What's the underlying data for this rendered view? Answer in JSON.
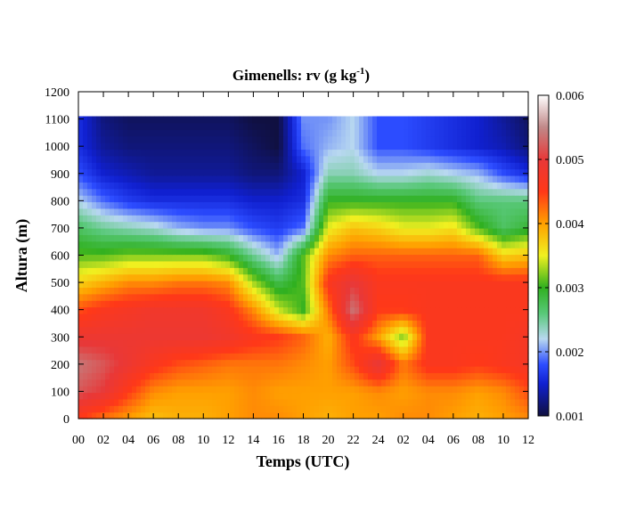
{
  "chart_data": {
    "type": "heatmap",
    "title": "Gimenells: rv (g kg",
    "title_superscript": "-1",
    "title_suffix": ")",
    "xlabel": "Temps (UTC)",
    "ylabel": "Altura (m)",
    "x_ticks": [
      "00",
      "02",
      "04",
      "06",
      "08",
      "10",
      "12",
      "14",
      "16",
      "18",
      "20",
      "22",
      "24",
      "02",
      "04",
      "06",
      "08",
      "10",
      "12"
    ],
    "y_ticks": [
      "0",
      "100",
      "200",
      "300",
      "400",
      "500",
      "600",
      "700",
      "800",
      "900",
      "1000",
      "1100",
      "1200"
    ],
    "ylim": [
      0,
      1200
    ],
    "x_range_hours": [
      0,
      36
    ],
    "data_top_m": 1110,
    "colorbar": {
      "ticks": [
        "0.006",
        "0.005",
        "0.004",
        "0.003",
        "0.002",
        "0.001"
      ],
      "range": [
        0.001,
        0.006
      ],
      "colors": [
        [
          0.001,
          "#101040"
        ],
        [
          0.0015,
          "#1020d0"
        ],
        [
          0.0018,
          "#2c4cff"
        ],
        [
          0.0022,
          "#b8d8f0"
        ],
        [
          0.0026,
          "#58c878"
        ],
        [
          0.003,
          "#30b020"
        ],
        [
          0.0035,
          "#f0f020"
        ],
        [
          0.004,
          "#ffa000"
        ],
        [
          0.0045,
          "#ff3818"
        ],
        [
          0.005,
          "#e83838"
        ],
        [
          0.0055,
          "#c08888"
        ],
        [
          0.006,
          "#ffffff"
        ]
      ]
    },
    "rows": [
      {
        "z": 0,
        "hours": [
          0,
          2,
          4,
          6,
          8,
          10,
          12,
          14,
          16,
          18,
          20,
          22,
          24,
          26,
          28,
          30,
          32,
          34,
          36
        ],
        "values": [
          0.0045,
          0.0042,
          0.004,
          0.0038,
          0.0039,
          0.0039,
          0.004,
          0.0041,
          0.0041,
          0.004,
          0.0039,
          0.004,
          0.004,
          0.0041,
          0.0041,
          0.004,
          0.0039,
          0.004,
          0.0041
        ]
      },
      {
        "z": 100,
        "hours": [
          0,
          2,
          4,
          6,
          8,
          10,
          12,
          14,
          16,
          18,
          20,
          22,
          24,
          26,
          28,
          30,
          32,
          34,
          36
        ],
        "values": [
          0.0052,
          0.005,
          0.0045,
          0.0041,
          0.004,
          0.004,
          0.004,
          0.0041,
          0.004,
          0.004,
          0.004,
          0.004,
          0.0041,
          0.004,
          0.0041,
          0.0041,
          0.004,
          0.0041,
          0.0044
        ]
      },
      {
        "z": 200,
        "hours": [
          0,
          2,
          4,
          6,
          8,
          10,
          12,
          14,
          16,
          18,
          20,
          22,
          24,
          26,
          28,
          30,
          32,
          34,
          36
        ],
        "values": [
          0.0054,
          0.0052,
          0.0049,
          0.0046,
          0.0044,
          0.0043,
          0.0042,
          0.0042,
          0.0042,
          0.0041,
          0.004,
          0.0044,
          0.005,
          0.0042,
          0.0046,
          0.0046,
          0.0045,
          0.0046,
          0.0047
        ]
      },
      {
        "z": 300,
        "hours": [
          0,
          2,
          4,
          6,
          8,
          10,
          12,
          14,
          16,
          18,
          20,
          22,
          24,
          26,
          28,
          30,
          32,
          34,
          36
        ],
        "values": [
          0.0049,
          0.0049,
          0.0049,
          0.0049,
          0.0049,
          0.0049,
          0.0048,
          0.0046,
          0.0045,
          0.0043,
          0.0039,
          0.0046,
          0.004,
          0.0032,
          0.0046,
          0.0046,
          0.0046,
          0.0046,
          0.0047
        ]
      },
      {
        "z": 400,
        "hours": [
          0,
          2,
          4,
          6,
          8,
          10,
          12,
          14,
          16,
          18,
          20,
          22,
          24,
          26,
          28,
          30,
          32,
          34,
          36
        ],
        "values": [
          0.0044,
          0.0046,
          0.0047,
          0.0048,
          0.0048,
          0.0048,
          0.0046,
          0.0041,
          0.0034,
          0.003,
          0.0042,
          0.0054,
          0.0045,
          0.0045,
          0.0046,
          0.0046,
          0.0046,
          0.0046,
          0.0046
        ]
      },
      {
        "z": 500,
        "hours": [
          0,
          2,
          4,
          6,
          8,
          10,
          12,
          14,
          16,
          18,
          20,
          22,
          24,
          26,
          28,
          30,
          32,
          34,
          36
        ],
        "values": [
          0.0037,
          0.0039,
          0.0041,
          0.0041,
          0.0042,
          0.0042,
          0.0041,
          0.0033,
          0.0028,
          0.0031,
          0.0046,
          0.005,
          0.0046,
          0.0046,
          0.0046,
          0.0046,
          0.0046,
          0.0046,
          0.0046
        ]
      },
      {
        "z": 600,
        "hours": [
          0,
          2,
          4,
          6,
          8,
          10,
          12,
          14,
          16,
          18,
          20,
          22,
          24,
          26,
          28,
          30,
          32,
          34,
          36
        ],
        "values": [
          0.0031,
          0.0031,
          0.0032,
          0.0032,
          0.0032,
          0.0032,
          0.003,
          0.0025,
          0.0021,
          0.0031,
          0.0041,
          0.0043,
          0.0043,
          0.0043,
          0.0043,
          0.0043,
          0.0043,
          0.0037,
          0.0038
        ]
      },
      {
        "z": 700,
        "hours": [
          0,
          2,
          4,
          6,
          8,
          10,
          12,
          14,
          16,
          18,
          20,
          22,
          24,
          26,
          28,
          30,
          32,
          34,
          36
        ],
        "values": [
          0.0027,
          0.0025,
          0.0024,
          0.0023,
          0.0021,
          0.002,
          0.002,
          0.0018,
          0.0017,
          0.0019,
          0.0035,
          0.0038,
          0.0037,
          0.0035,
          0.0035,
          0.0036,
          0.0031,
          0.0027,
          0.0029
        ]
      },
      {
        "z": 800,
        "hours": [
          0,
          2,
          4,
          6,
          8,
          10,
          12,
          14,
          16,
          18,
          20,
          22,
          24,
          26,
          28,
          30,
          32,
          34,
          36
        ],
        "values": [
          0.0022,
          0.0019,
          0.0017,
          0.0016,
          0.0016,
          0.0016,
          0.0016,
          0.0015,
          0.0015,
          0.0016,
          0.003,
          0.003,
          0.003,
          0.003,
          0.003,
          0.003,
          0.0026,
          0.0026,
          0.0026
        ]
      },
      {
        "z": 900,
        "hours": [
          0,
          2,
          4,
          6,
          8,
          10,
          12,
          14,
          16,
          18,
          20,
          22,
          24,
          26,
          28,
          30,
          32,
          34,
          36
        ],
        "values": [
          0.0018,
          0.0015,
          0.0014,
          0.0013,
          0.0013,
          0.0013,
          0.0013,
          0.0012,
          0.0012,
          0.0015,
          0.0024,
          0.0024,
          0.0022,
          0.0022,
          0.0023,
          0.0022,
          0.0021,
          0.0018,
          0.0016
        ]
      },
      {
        "z": 1000,
        "hours": [
          0,
          2,
          4,
          6,
          8,
          10,
          12,
          14,
          16,
          18,
          20,
          22,
          24,
          26,
          28,
          30,
          32,
          34,
          36
        ],
        "values": [
          0.0016,
          0.0013,
          0.0012,
          0.0012,
          0.0012,
          0.0012,
          0.0012,
          0.0011,
          0.001,
          0.0019,
          0.0021,
          0.0022,
          0.0018,
          0.0018,
          0.0017,
          0.0016,
          0.0015,
          0.0014,
          0.0012
        ]
      },
      {
        "z": 1110,
        "hours": [
          0,
          2,
          4,
          6,
          8,
          10,
          12,
          14,
          16,
          18,
          20,
          22,
          24,
          26,
          28,
          30,
          32,
          34,
          36
        ],
        "values": [
          0.0016,
          0.0012,
          0.0011,
          0.0011,
          0.0011,
          0.0011,
          0.0011,
          0.001,
          0.001,
          0.002,
          0.002,
          0.0022,
          0.0018,
          0.0018,
          0.0017,
          0.0016,
          0.0015,
          0.0013,
          0.0011
        ]
      }
    ]
  }
}
